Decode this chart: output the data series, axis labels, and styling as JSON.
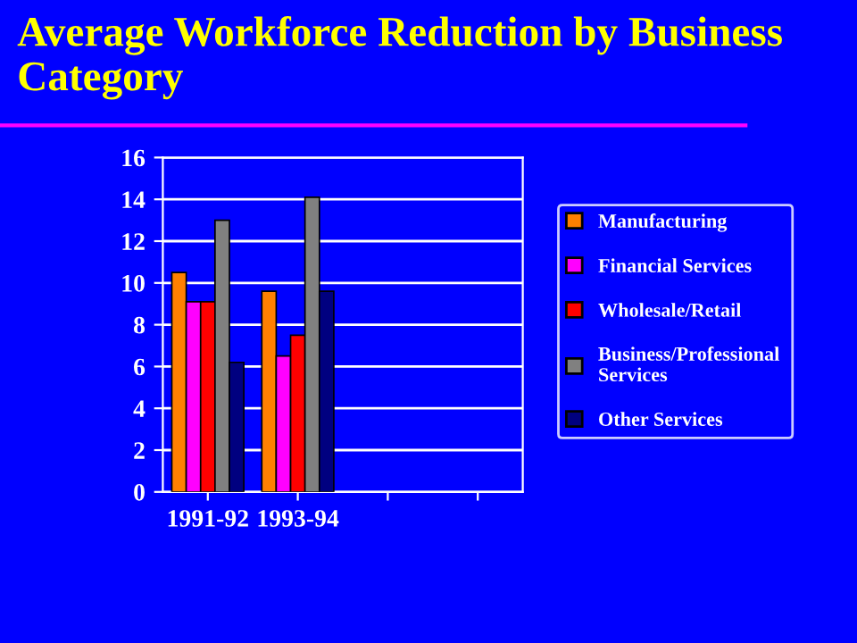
{
  "chart_data": {
    "type": "bar",
    "title": "Average Workforce Reduction by Business Category",
    "categories": [
      "1991-92",
      "1993-94",
      null,
      null
    ],
    "series": [
      {
        "name": "Manufacturing",
        "color": "#ff8000",
        "values": [
          10.5,
          9.6,
          null,
          null
        ]
      },
      {
        "name": "Financial Services",
        "color": "#ff00ff",
        "values": [
          9.1,
          6.5,
          null,
          null
        ]
      },
      {
        "name": "Wholesale/Retail",
        "color": "#ff0000",
        "values": [
          9.1,
          7.5,
          null,
          null
        ]
      },
      {
        "name": "Business/Professional Services",
        "color": "#808080",
        "values": [
          13.0,
          14.1,
          null,
          null
        ]
      },
      {
        "name": "Other Services",
        "color": "#000080",
        "values": [
          6.2,
          9.6,
          null,
          null
        ]
      }
    ],
    "ylim": [
      0,
      16
    ],
    "yticks": [
      0,
      2,
      4,
      6,
      8,
      10,
      12,
      14,
      16
    ],
    "grid": "y",
    "legend": "right"
  }
}
